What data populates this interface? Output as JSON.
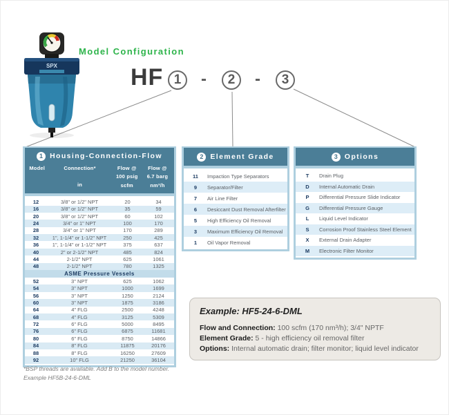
{
  "header": {
    "title": "Model Configuration",
    "model_prefix": "HF",
    "positions": [
      "1",
      "2",
      "3"
    ],
    "separator": "-"
  },
  "product": {
    "brand": "SPX"
  },
  "housing_table": {
    "number": "1",
    "title": "Housing-Connection-Flow",
    "columns": [
      {
        "lines": [
          "Model",
          "",
          ""
        ]
      },
      {
        "lines": [
          "Connection*",
          "",
          "in"
        ]
      },
      {
        "lines": [
          "Flow @",
          "100 psig",
          "scfm"
        ]
      },
      {
        "lines": [
          "Flow @",
          "6.7 barg",
          "nm³/h"
        ]
      }
    ],
    "rows": [
      [
        "12",
        "3/8\" or 1/2\" NPT",
        "20",
        "34"
      ],
      [
        "16",
        "3/8\" or 1/2\" NPT",
        "35",
        "59"
      ],
      [
        "20",
        "3/8\" or 1/2\" NPT",
        "60",
        "102"
      ],
      [
        "24",
        "3/4\" or 1\" NPT",
        "100",
        "170"
      ],
      [
        "28",
        "3/4\" or 1\" NPT",
        "170",
        "289"
      ],
      [
        "32",
        "1\", 1-1/4\" or 1-1/2\" NPT",
        "250",
        "425"
      ],
      [
        "36",
        "1\", 1-1/4\" or 1-1/2\" NPT",
        "375",
        "637"
      ],
      [
        "40",
        "2\" or 2-1/2\" NPT",
        "485",
        "824"
      ],
      [
        "44",
        "2-1/2\" NPT",
        "625",
        "1061"
      ],
      [
        "48",
        "2-1/2\" NPT",
        "780",
        "1325"
      ]
    ],
    "section_label": "ASME Pressure Vessels",
    "asme_rows": [
      [
        "52",
        "3\" NPT",
        "625",
        "1062"
      ],
      [
        "54",
        "3\" NPT",
        "1000",
        "1699"
      ],
      [
        "56",
        "3\" NPT",
        "1250",
        "2124"
      ],
      [
        "60",
        "3\" NPT",
        "1875",
        "3186"
      ],
      [
        "64",
        "4\" FLG",
        "2500",
        "4248"
      ],
      [
        "68",
        "4\" FLG",
        "3125",
        "5309"
      ],
      [
        "72",
        "6\" FLG",
        "5000",
        "8495"
      ],
      [
        "76",
        "6\" FLG",
        "6875",
        "11681"
      ],
      [
        "80",
        "6\" FLG",
        "8750",
        "14866"
      ],
      [
        "84",
        "8\" FLG",
        "11875",
        "20176"
      ],
      [
        "88",
        "8\" FLG",
        "16250",
        "27609"
      ],
      [
        "92",
        "10\" FLG",
        "21250",
        "36104"
      ]
    ]
  },
  "element_table": {
    "number": "2",
    "title": "Element Grade",
    "rows": [
      [
        "11",
        "Impaction Type Separators"
      ],
      [
        "9",
        "Separator/Filter"
      ],
      [
        "7",
        "Air Line Filter"
      ],
      [
        "6",
        "Desiccant Dust Removal Afterfilter"
      ],
      [
        "5",
        "High Efficiency Oil Removal"
      ],
      [
        "3",
        "Maximum Efficiency Oil Removal"
      ],
      [
        "1",
        "Oil Vapor Removal"
      ]
    ]
  },
  "options_table": {
    "number": "3",
    "title": "Options",
    "rows": [
      [
        "T",
        "Drain Plug"
      ],
      [
        "D",
        "Internal Automatic Drain"
      ],
      [
        "P",
        "Differential Pressure Slide Indicator"
      ],
      [
        "G",
        "Differential Pressure Gauge"
      ],
      [
        "L",
        "Liquid Level Indicator"
      ],
      [
        "S",
        "Corrosion Proof Stainless Steel Element"
      ],
      [
        "X",
        "External Drain Adapter"
      ],
      [
        "M",
        "Electronic Filter Monitor"
      ]
    ]
  },
  "example_box": {
    "title": "Example: HF5-24-6-DML",
    "lines": [
      {
        "label": "Flow and Connection:",
        "value": " 100 scfm (170 nm³/h); 3/4\" NPTF"
      },
      {
        "label": "Element Grade:",
        "value": " 5 - high efficiency oil removal filter"
      },
      {
        "label": "Options:",
        "value": " Internal automatic drain; filter monitor; liquid level indicator"
      }
    ]
  },
  "footnote": {
    "line1": "*BSP threads are available. Add B to the model number.",
    "line2": "Example HF5B-24-6-DML"
  },
  "colors": {
    "accent_green": "#2eb44b",
    "header_teal": "#4b7e97",
    "frame_blue": "#aecfdf",
    "stripe_blue": "#d9eaf4",
    "asme_blue": "#c2dcea",
    "navy_text": "#1d3c62",
    "example_bg": "#edeae5",
    "product_body_blue": "#2f84ad",
    "product_cap_navy": "#16365c"
  }
}
